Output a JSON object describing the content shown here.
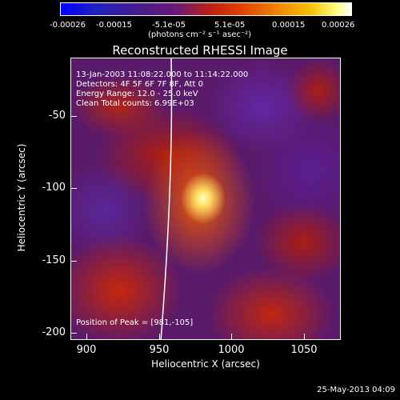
{
  "colorbar": {
    "ticks": [
      "-0.00026",
      "-0.00015",
      "-5.1e-05",
      "5.1e-05",
      "0.00015",
      "0.00026"
    ],
    "units": "(photons cm⁻² s⁻¹ asec⁻²)"
  },
  "plot": {
    "title": "Reconstructed RHESSI Image",
    "time_range": "13-Jan-2003 11:08:22.000 to 11:14:22.000",
    "detectors": "Detectors: 4F 5F 6F 7F 8F, Att 0",
    "energy_range": "Energy Range: 12.0 - 25.0 keV",
    "clean_counts": "Clean     Total counts: 6.99E+03",
    "peak_position": "Position of Peak = [981,-105]",
    "xlabel": "Heliocentric X (arcsec)",
    "ylabel": "Heliocentric Y (arcsec)",
    "xticks": [
      "900",
      "950",
      "1000",
      "1050"
    ],
    "yticks": [
      "-50",
      "-100",
      "-150",
      "-200"
    ]
  },
  "footer": {
    "timestamp": "25-May-2013 04:09"
  },
  "colors": {
    "background": "#000000",
    "peak": "#ffffcc",
    "flare": "#e04000",
    "background_emission": "#5a1a6a"
  }
}
